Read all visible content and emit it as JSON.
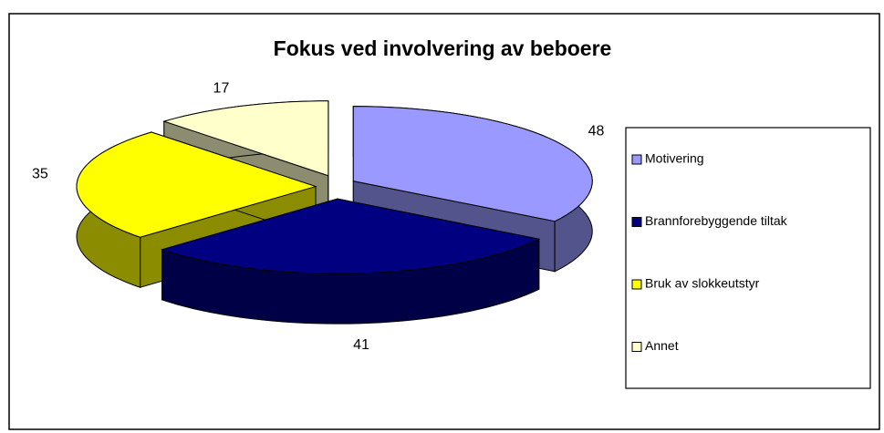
{
  "chart_data": {
    "type": "pie3d",
    "title": "Fokus ved involvering av beboere",
    "categories": [
      "Motivering",
      "Brannforebyggende tiltak",
      "Bruk av slokkeutstyr",
      "Annet"
    ],
    "values": [
      48,
      41,
      35,
      17
    ],
    "colors": [
      "#9999ff",
      "#000080",
      "#ffff00",
      "#ffffcc"
    ],
    "legend": "right"
  }
}
